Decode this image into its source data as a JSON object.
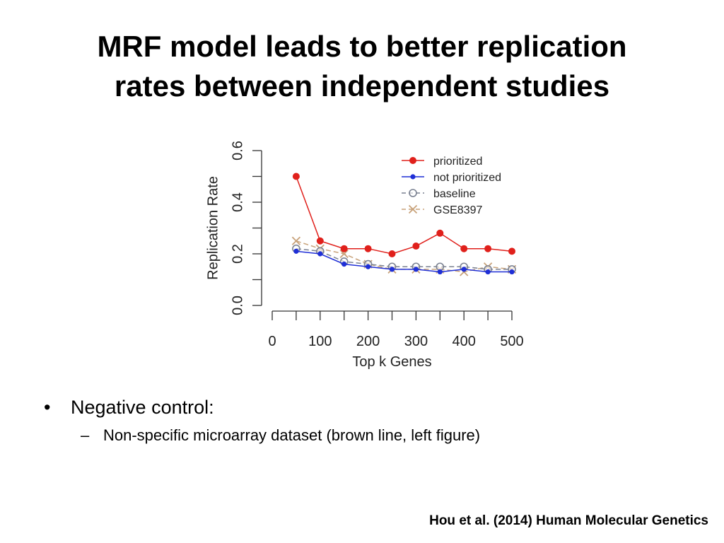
{
  "slide": {
    "title_line1": "MRF model leads to better replication",
    "title_line2": "rates between independent studies",
    "bullet_glyph": "•",
    "bullet_text": "Negative control:",
    "sub_glyph": "–",
    "sub_text": "Non-specific microarray dataset (brown line, left figure)",
    "citation": "Hou et al. (2014) Human Molecular Genetics"
  },
  "chart_data": {
    "type": "line",
    "title": "",
    "xlabel": "Top k Genes",
    "ylabel": "Replication Rate",
    "xlim": [
      0,
      500
    ],
    "ylim": [
      0,
      0.6
    ],
    "x": [
      50,
      100,
      150,
      200,
      250,
      300,
      350,
      400,
      450,
      500
    ],
    "x_ticks": [
      0,
      100,
      200,
      300,
      400,
      500
    ],
    "x_minor_ticks": [
      0,
      50,
      100,
      150,
      200,
      250,
      300,
      350,
      400,
      450,
      500
    ],
    "y_ticks": [
      0.0,
      0.2,
      0.4,
      0.6
    ],
    "y_minor_ticks": [
      0.0,
      0.1,
      0.2,
      0.3,
      0.4,
      0.5,
      0.6
    ],
    "grid": false,
    "legend_position": "top-right",
    "series": [
      {
        "name": "prioritized",
        "color": "#e0201b",
        "marker": "filled-circle",
        "dash": "solid",
        "values": [
          0.5,
          0.25,
          0.22,
          0.22,
          0.2,
          0.23,
          0.28,
          0.22,
          0.22,
          0.21
        ]
      },
      {
        "name": "not prioritized",
        "color": "#1f2fd6",
        "marker": "filled-circle-small",
        "dash": "solid",
        "values": [
          0.21,
          0.2,
          0.16,
          0.15,
          0.14,
          0.14,
          0.13,
          0.14,
          0.13,
          0.13
        ]
      },
      {
        "name": "baseline",
        "color": "#7a8191",
        "marker": "open-circle",
        "dash": "dashed",
        "values": [
          0.22,
          0.21,
          0.17,
          0.16,
          0.15,
          0.15,
          0.15,
          0.15,
          0.14,
          0.14
        ]
      },
      {
        "name": "GSE8397",
        "color": "#c8a27a",
        "marker": "x",
        "dash": "dashed",
        "values": [
          0.25,
          0.22,
          0.2,
          0.16,
          0.14,
          0.14,
          0.14,
          0.13,
          0.15,
          0.14
        ]
      }
    ]
  }
}
